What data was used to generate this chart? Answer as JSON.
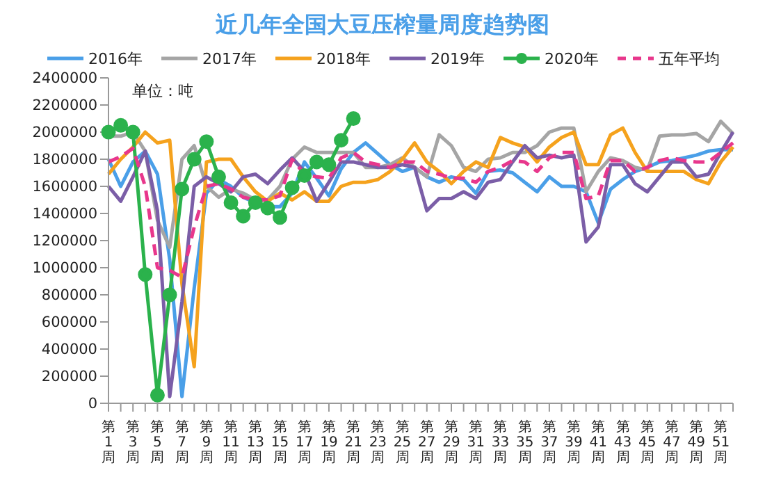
{
  "chart_data": {
    "type": "line",
    "title": "近几年全国大豆压榨量周度趋势图",
    "annotations": [
      "单位：吨"
    ],
    "categories": [
      "第1周",
      null,
      "第3周",
      null,
      "第5周",
      null,
      "第7周",
      null,
      "第9周",
      null,
      "第11周",
      null,
      "第13周",
      null,
      "第15周",
      null,
      "第17周",
      null,
      "第19周",
      null,
      "第21周",
      null,
      "第23周",
      null,
      "第25周",
      null,
      "第27周",
      null,
      "第29周",
      null,
      "第31周",
      null,
      "第33周",
      null,
      "第35周",
      null,
      "第37周",
      null,
      "第39周",
      null,
      "第41周",
      null,
      "第43周",
      null,
      "第45周",
      null,
      "第47周",
      null,
      "第49周",
      null,
      "第51周",
      null
    ],
    "series": [
      {
        "name": "2016年",
        "color": "#4a9fe8",
        "marker": "none",
        "values": [
          1800000,
          1600000,
          1780000,
          1860000,
          1690000,
          1060000,
          50000,
          850000,
          1550000,
          1650000,
          1600000,
          1520000,
          1480000,
          1450000,
          1450000,
          1550000,
          1780000,
          1660000,
          1530000,
          1730000,
          1850000,
          1920000,
          1840000,
          1760000,
          1710000,
          1740000,
          1670000,
          1630000,
          1670000,
          1650000,
          1550000,
          1710000,
          1720000,
          1700000,
          1630000,
          1560000,
          1670000,
          1600000,
          1600000,
          1560000,
          1330000,
          1580000,
          1650000,
          1710000,
          1740000,
          1780000,
          1790000,
          1810000,
          1830000,
          1860000,
          1870000,
          1870000
        ]
      },
      {
        "name": "2017年",
        "color": "#a5a5a5",
        "marker": "none",
        "values": [
          1970000,
          1970000,
          2000000,
          1860000,
          1350000,
          1150000,
          1800000,
          1900000,
          1600000,
          1520000,
          1580000,
          1550000,
          1500000,
          1500000,
          1600000,
          1800000,
          1890000,
          1850000,
          1850000,
          1850000,
          1850000,
          1740000,
          1740000,
          1760000,
          1810000,
          1740000,
          1670000,
          1980000,
          1900000,
          1740000,
          1710000,
          1800000,
          1810000,
          1850000,
          1850000,
          1900000,
          2000000,
          2030000,
          2030000,
          1560000,
          1710000,
          1810000,
          1790000,
          1740000,
          1720000,
          1970000,
          1980000,
          1980000,
          1990000,
          1930000,
          2080000,
          1990000
        ]
      },
      {
        "name": "2018年",
        "color": "#f5a21d",
        "marker": "none",
        "values": [
          1690000,
          1800000,
          1890000,
          2000000,
          1920000,
          1940000,
          880000,
          270000,
          1780000,
          1800000,
          1800000,
          1670000,
          1560000,
          1490000,
          1550000,
          1500000,
          1560000,
          1490000,
          1490000,
          1600000,
          1630000,
          1630000,
          1650000,
          1710000,
          1800000,
          1920000,
          1780000,
          1710000,
          1620000,
          1710000,
          1780000,
          1740000,
          1960000,
          1920000,
          1890000,
          1780000,
          1890000,
          1960000,
          2000000,
          1760000,
          1760000,
          1980000,
          2030000,
          1850000,
          1710000,
          1710000,
          1710000,
          1710000,
          1650000,
          1620000,
          1780000,
          1890000
        ]
      },
      {
        "name": "2019年",
        "color": "#7b5ea7",
        "marker": "none",
        "values": [
          1600000,
          1490000,
          1670000,
          1860000,
          1420000,
          50000,
          750000,
          1600000,
          1670000,
          1620000,
          1560000,
          1670000,
          1690000,
          1620000,
          1720000,
          1810000,
          1710000,
          1490000,
          1630000,
          1780000,
          1780000,
          1760000,
          1740000,
          1740000,
          1760000,
          1740000,
          1420000,
          1510000,
          1510000,
          1560000,
          1510000,
          1630000,
          1650000,
          1780000,
          1900000,
          1810000,
          1830000,
          1810000,
          1830000,
          1190000,
          1300000,
          1760000,
          1760000,
          1620000,
          1560000,
          1670000,
          1780000,
          1780000,
          1670000,
          1690000,
          1850000,
          2000000
        ]
      },
      {
        "name": "2020年",
        "color": "#2bb24c",
        "marker": "circle",
        "values": [
          2000000,
          2050000,
          2000000,
          950000,
          60000,
          800000,
          1580000,
          1800000,
          1930000,
          1670000,
          1480000,
          1380000,
          1480000,
          1440000,
          1370000,
          1590000,
          1680000,
          1780000,
          1760000,
          1940000,
          2100000,
          null,
          null,
          null,
          null,
          null,
          null,
          null,
          null,
          null,
          null,
          null,
          null,
          null,
          null,
          null,
          null,
          null,
          null,
          null,
          null,
          null,
          null,
          null,
          null,
          null,
          null,
          null,
          null,
          null,
          null,
          null
        ]
      },
      {
        "name": "五年平均",
        "color": "#e8378c",
        "marker": "none",
        "line_style": "dashed",
        "values": [
          1780000,
          1820000,
          1880000,
          1600000,
          1000000,
          980000,
          930000,
          1300000,
          1600000,
          1620000,
          1580000,
          1520000,
          1500000,
          1500000,
          1530000,
          1800000,
          1690000,
          1670000,
          1660000,
          1810000,
          1850000,
          1780000,
          1760000,
          1740000,
          1780000,
          1780000,
          1710000,
          1690000,
          1660000,
          1660000,
          1630000,
          1710000,
          1740000,
          1790000,
          1780000,
          1710000,
          1810000,
          1850000,
          1850000,
          1510000,
          1530000,
          1790000,
          1790000,
          1710000,
          1740000,
          1790000,
          1810000,
          1790000,
          1780000,
          1780000,
          1850000,
          1920000
        ]
      }
    ],
    "ylim": [
      0,
      2400000
    ],
    "yticks": [
      0,
      200000,
      400000,
      600000,
      800000,
      1000000,
      1200000,
      1400000,
      1600000,
      1800000,
      2000000,
      2200000,
      2400000
    ],
    "legend": "top"
  }
}
